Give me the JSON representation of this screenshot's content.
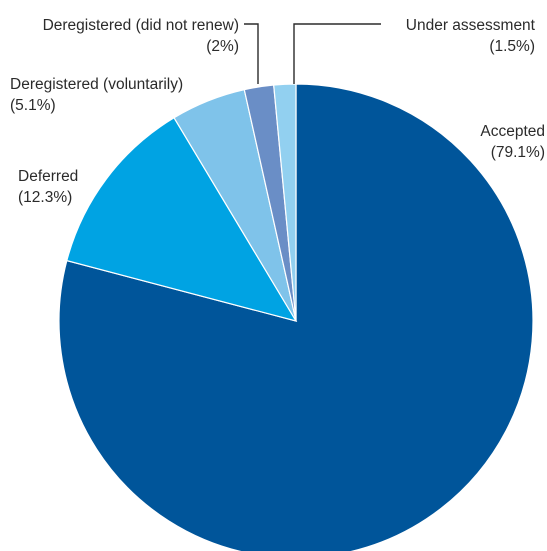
{
  "chart_data": {
    "type": "pie",
    "title": "",
    "slices": [
      {
        "label": "Accepted",
        "value_label": "(79.1%)",
        "value": 79.1,
        "color": "#00559a"
      },
      {
        "label": "Deferred",
        "value_label": "(12.3%)",
        "value": 12.3,
        "color": "#00a3e3"
      },
      {
        "label": "Deregistered (voluntarily)",
        "value_label": "(5.1%)",
        "value": 5.1,
        "color": "#7fc3ea"
      },
      {
        "label": "Deregistered (did not renew)",
        "value_label": "(2%)",
        "value": 2.0,
        "color": "#6a8ec6"
      },
      {
        "label": "Under assessment",
        "value_label": "(1.5%)",
        "value": 1.5,
        "color": "#92d0f0"
      }
    ],
    "start_angle": "12 o'clock",
    "direction": "clockwise",
    "legend": "none (direct labels)"
  }
}
